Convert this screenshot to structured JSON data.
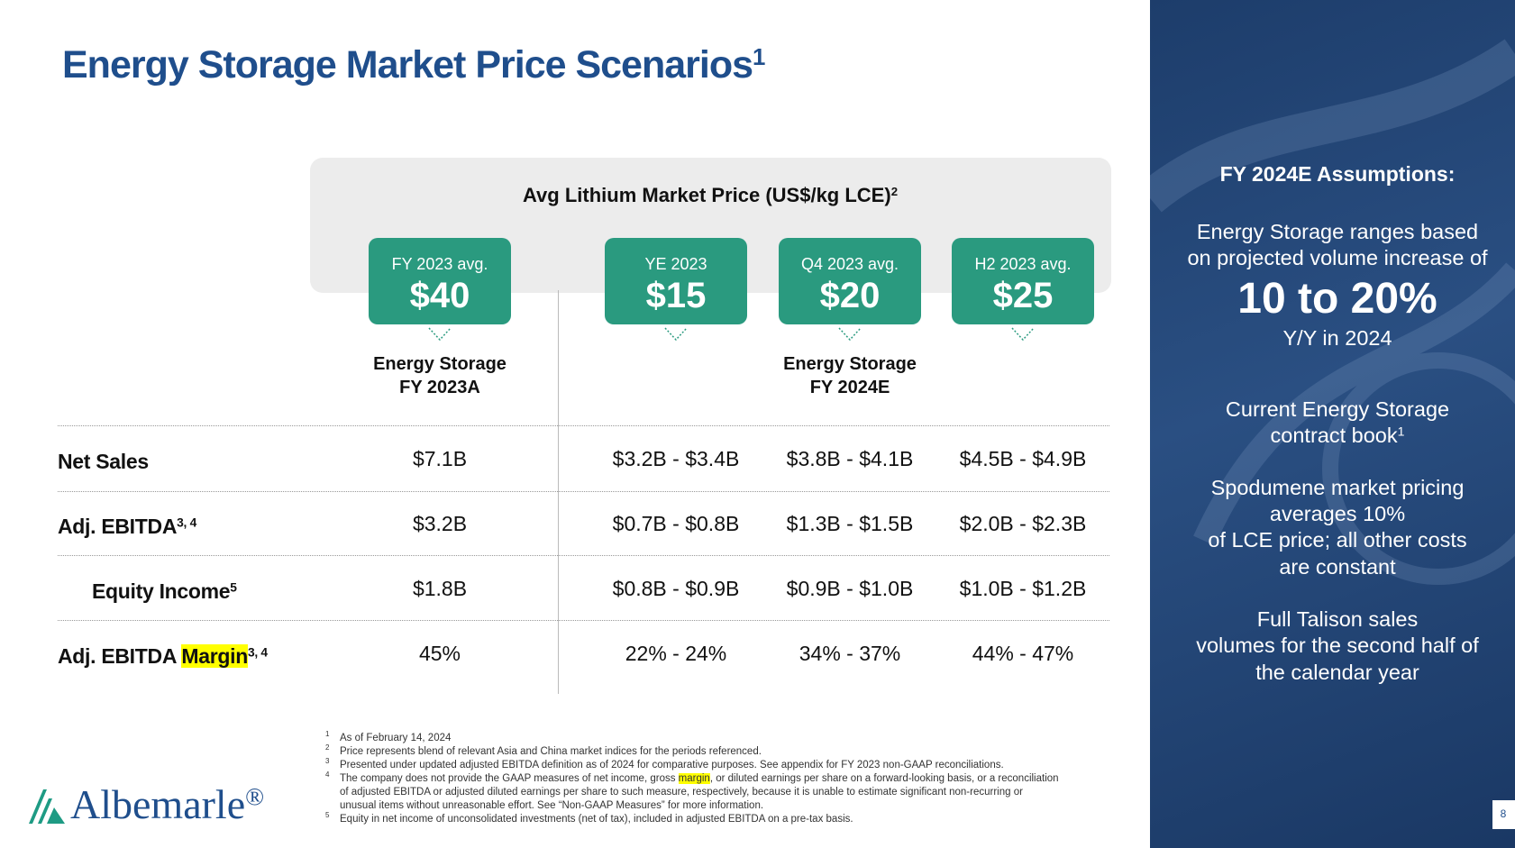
{
  "title": "Energy Storage Market Price Scenarios",
  "title_sup": "1",
  "table": {
    "header": "Avg Lithium Market Price (US$/kg LCE)",
    "header_sup": "2",
    "columns": [
      {
        "label": "FY 2023 avg.",
        "price": "$40"
      },
      {
        "label": "YE 2023",
        "price": "$15"
      },
      {
        "label": "Q4 2023 avg.",
        "price": "$20"
      },
      {
        "label": "H2 2023 avg.",
        "price": "$25"
      }
    ],
    "groups": [
      [
        "Energy Storage",
        "FY 2023A"
      ],
      [
        "Energy Storage",
        "FY 2024E"
      ]
    ],
    "rows": [
      {
        "label": "Net Sales",
        "values": [
          "$7.1B",
          "$3.2B - $3.4B",
          "$3.8B - $4.1B",
          "$4.5B - $4.9B"
        ]
      },
      {
        "label": "Adj. EBITDA",
        "sup": "3, 4",
        "values": [
          "$3.2B",
          "$0.7B - $0.8B",
          "$1.3B - $1.5B",
          "$2.0B - $2.3B"
        ]
      },
      {
        "label": "Equity Income",
        "sup": "5",
        "values": [
          "$1.8B",
          "$0.8B - $0.9B",
          "$0.9B - $1.0B",
          "$1.0B - $1.2B"
        ]
      },
      {
        "label": "Adj. EBITDA ",
        "highlight": "Margin",
        "sup": "3, 4",
        "values": [
          "45%",
          "22% - 24%",
          "34% - 37%",
          "44% - 47%"
        ]
      }
    ]
  },
  "footnotes": [
    {
      "num": "1",
      "parts": [
        "As of February 14, 2024"
      ]
    },
    {
      "num": "2",
      "parts": [
        "Price represents blend of relevant Asia and China market indices for the periods referenced."
      ]
    },
    {
      "num": "3",
      "parts": [
        "Presented under updated adjusted EBITDA definition as of 2024 for comparative purposes. See appendix for FY 2023 non-GAAP reconciliations."
      ]
    },
    {
      "num": "4",
      "parts": [
        "The company does not provide the GAAP measures of net income, gross ",
        "margin",
        ", or diluted earnings per share on a forward-looking basis, or a reconciliation of adjusted EBITDA or adjusted diluted earnings per share to such measure, respectively, because it is unable to estimate significant non-recurring or unusual items without unreasonable effort. See “Non-GAAP Measures” for more information."
      ]
    },
    {
      "num": "5",
      "parts": [
        "Equity in net income of unconsolidated investments (net of tax), included in adjusted EBITDA on a pre-tax basis."
      ]
    }
  ],
  "sidebar": {
    "heading": "FY 2024E Assumptions:",
    "intro": [
      "Energy Storage ranges based",
      "on projected volume increase of"
    ],
    "big": "10 to 20%",
    "big_sub": "Y/Y in 2024",
    "contract": [
      "Current Energy Storage",
      "contract book"
    ],
    "contract_sup": "1",
    "spodumene": [
      "Spodumene market pricing",
      "averages 10%",
      "of LCE price; all other costs",
      "are constant"
    ],
    "talison": [
      "Full Talison sales",
      "volumes for the second half of",
      "the calendar year"
    ]
  },
  "logo": "Albemarle",
  "logo_mark": "®",
  "page_number": "8"
}
